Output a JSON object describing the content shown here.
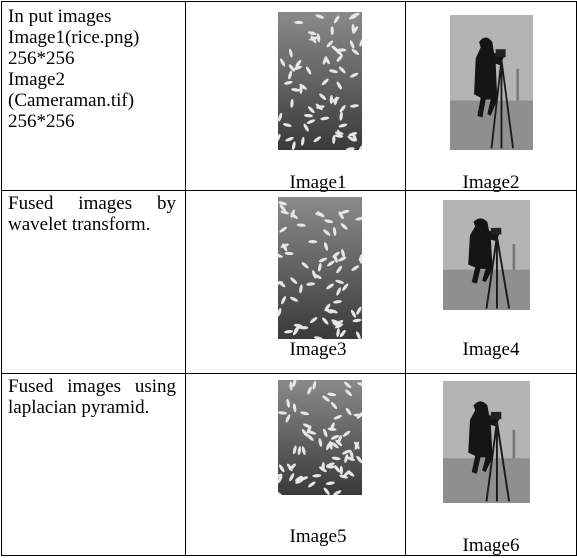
{
  "table": {
    "rows": [
      {
        "description": [
          "In put images",
          "Image1(rice.png)",
          "256*256",
          "Image2",
          "(Cameraman.tif)",
          "256*256"
        ],
        "images": [
          {
            "caption": "Image1"
          },
          {
            "caption": "Image2"
          }
        ]
      },
      {
        "description": [
          "Fused images by wavelet transform."
        ],
        "images": [
          {
            "caption": "Image3"
          },
          {
            "caption": "Image4"
          }
        ]
      },
      {
        "description": [
          "Fused images using laplacian pyramid."
        ],
        "images": [
          {
            "caption": "Image5"
          },
          {
            "caption": "Image6"
          }
        ]
      }
    ]
  }
}
